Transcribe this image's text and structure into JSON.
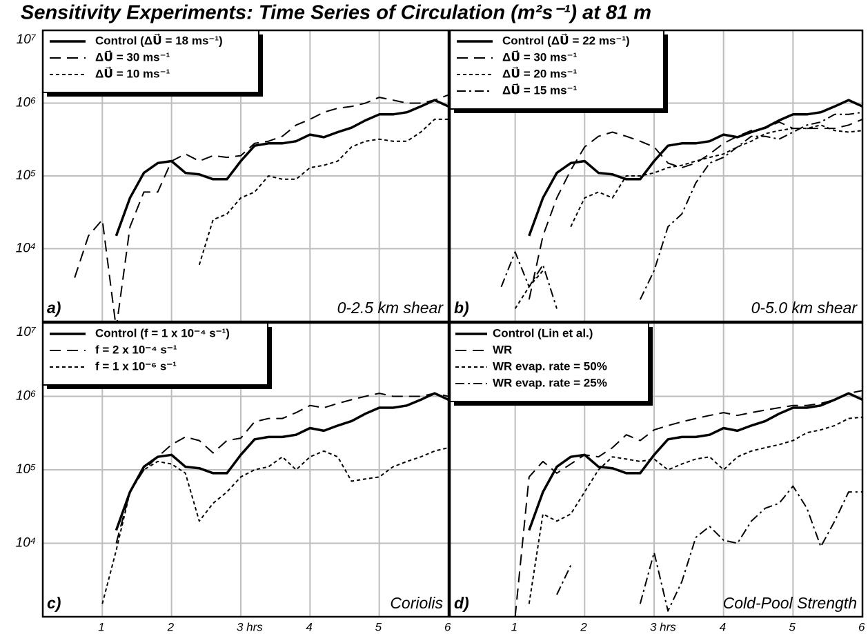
{
  "title": "Sensitivity Experiments:  Time Series of Circulation (m²s⁻¹) at 81 m",
  "chart_data": [
    {
      "type": "line",
      "title": "a)",
      "annotation": "0-2.5 km shear",
      "logy": true,
      "grid": true,
      "legend": "upper left",
      "x": [
        0.6,
        0.8,
        1.0,
        1.2,
        1.4,
        1.6,
        1.8,
        2.0,
        2.2,
        2.4,
        2.6,
        2.8,
        3.0,
        3.2,
        3.4,
        3.6,
        3.8,
        4.0,
        4.2,
        4.4,
        4.6,
        4.8,
        5.0,
        5.2,
        5.4,
        5.6,
        5.8,
        6.0
      ],
      "xlim": [
        0.14,
        6
      ],
      "xticks": [
        1,
        2,
        3,
        4,
        5
      ],
      "ylim": [
        1000,
        10000000
      ],
      "yticks": [
        {
          "value": 10000,
          "label": "10⁴"
        },
        {
          "value": 100000,
          "label": "10⁵"
        },
        {
          "value": 1000000,
          "label": "10⁶"
        },
        {
          "value": 10000000,
          "label": "10⁷"
        }
      ],
      "series": [
        {
          "name": "Control (ΔU⃗ = 18 ms⁻¹)",
          "color": "#000000",
          "linestyle": "solid",
          "values": [
            null,
            null,
            null,
            15000,
            50000,
            110000,
            150000,
            160000,
            110000,
            105000,
            90000,
            90000,
            160000,
            260000,
            280000,
            280000,
            300000,
            370000,
            340000,
            400000,
            460000,
            580000,
            700000,
            700000,
            750000,
            900000,
            1100000,
            900000
          ]
        },
        {
          "name": "ΔU⃗ = 30 ms⁻¹",
          "color": "#000000",
          "linestyle": "dashed",
          "values": [
            4000,
            15000,
            25000,
            800,
            20000,
            60000,
            60000,
            160000,
            200000,
            160000,
            190000,
            180000,
            190000,
            280000,
            300000,
            350000,
            500000,
            600000,
            750000,
            850000,
            900000,
            1000000,
            1200000,
            1100000,
            1000000,
            1000000,
            1100000,
            1300000
          ]
        },
        {
          "name": "ΔU⃗ = 10 ms⁻¹",
          "color": "#000000",
          "linestyle": "dotted",
          "values": [
            null,
            null,
            null,
            null,
            null,
            null,
            null,
            null,
            null,
            6000,
            25000,
            30000,
            50000,
            60000,
            100000,
            90000,
            90000,
            130000,
            140000,
            160000,
            250000,
            300000,
            320000,
            300000,
            300000,
            400000,
            600000,
            600000
          ]
        }
      ]
    },
    {
      "type": "line",
      "title": "b)",
      "annotation": "0-5.0 km shear",
      "logy": true,
      "grid": true,
      "legend": "upper left",
      "x": [
        0.6,
        0.8,
        1.0,
        1.2,
        1.4,
        1.6,
        1.8,
        2.0,
        2.2,
        2.4,
        2.6,
        2.8,
        3.0,
        3.2,
        3.4,
        3.6,
        3.8,
        4.0,
        4.2,
        4.4,
        4.6,
        4.8,
        5.0,
        5.2,
        5.4,
        5.6,
        5.8,
        6.0
      ],
      "xlim": [
        0.06,
        6
      ],
      "xticks": [
        1,
        2,
        3,
        4,
        5
      ],
      "ylim": [
        1000,
        10000000
      ],
      "yticks": [
        10000,
        100000,
        1000000
      ],
      "series": [
        {
          "name": "Control (ΔU⃗ = 22 ms⁻¹)",
          "color": "#000000",
          "linestyle": "solid",
          "values": [
            null,
            null,
            null,
            15000,
            50000,
            110000,
            150000,
            160000,
            110000,
            105000,
            90000,
            90000,
            160000,
            260000,
            280000,
            280000,
            300000,
            370000,
            340000,
            400000,
            460000,
            580000,
            700000,
            700000,
            750000,
            900000,
            1100000,
            900000
          ]
        },
        {
          "name": "ΔU⃗ = 30 ms⁻¹",
          "color": "#000000",
          "linestyle": "dashed",
          "values": [
            null,
            null,
            null,
            2000,
            15000,
            50000,
            120000,
            250000,
            350000,
            400000,
            350000,
            300000,
            250000,
            150000,
            130000,
            150000,
            200000,
            280000,
            350000,
            420000,
            450000,
            550000,
            450000,
            450000,
            450000,
            450000,
            500000,
            600000
          ]
        },
        {
          "name": "ΔU⃗ = 20 ms⁻¹",
          "color": "#000000",
          "linestyle": "dotted",
          "values": [
            null,
            null,
            1500,
            3000,
            5000,
            null,
            20000,
            50000,
            60000,
            50000,
            100000,
            100000,
            110000,
            130000,
            140000,
            160000,
            180000,
            200000,
            250000,
            300000,
            380000,
            420000,
            450000,
            450000,
            500000,
            420000,
            400000,
            420000
          ]
        },
        {
          "name": "ΔU⃗ = 15 ms⁻¹",
          "color": "#000000",
          "linestyle": "dashdot",
          "values": [
            null,
            3000,
            9000,
            3000,
            6000,
            1500,
            null,
            null,
            null,
            null,
            null,
            2000,
            5000,
            20000,
            30000,
            80000,
            150000,
            180000,
            250000,
            350000,
            350000,
            320000,
            400000,
            500000,
            550000,
            700000,
            700000,
            750000
          ]
        }
      ]
    },
    {
      "type": "line",
      "title": "c)",
      "annotation": "Coriolis",
      "logy": true,
      "grid": true,
      "legend": "upper left",
      "x": [
        0.6,
        0.8,
        1.0,
        1.2,
        1.4,
        1.6,
        1.8,
        2.0,
        2.2,
        2.4,
        2.6,
        2.8,
        3.0,
        3.2,
        3.4,
        3.6,
        3.8,
        4.0,
        4.2,
        4.4,
        4.6,
        4.8,
        5.0,
        5.2,
        5.4,
        5.6,
        5.8,
        6.0
      ],
      "xlim": [
        0.14,
        6
      ],
      "xticks": [
        1,
        2,
        {
          "value": 3,
          "label": "3  hrs"
        },
        4,
        5,
        6
      ],
      "ylim": [
        1000,
        10000000
      ],
      "yticks": [
        {
          "value": 10000,
          "label": "10⁴"
        },
        {
          "value": 100000,
          "label": "10⁵"
        },
        {
          "value": 1000000,
          "label": "10⁶"
        },
        {
          "value": 10000000,
          "label": "10⁷"
        }
      ],
      "series": [
        {
          "name": "Control (f = 1 x 10⁻⁴ s⁻¹)",
          "color": "#000000",
          "linestyle": "solid",
          "values": [
            null,
            null,
            null,
            15000,
            50000,
            110000,
            150000,
            160000,
            110000,
            105000,
            90000,
            90000,
            160000,
            260000,
            280000,
            280000,
            300000,
            370000,
            340000,
            400000,
            460000,
            580000,
            700000,
            700000,
            750000,
            900000,
            1100000,
            900000
          ]
        },
        {
          "name": "f = 2 x 10⁻⁴ s⁻¹",
          "color": "#000000",
          "linestyle": "dashed",
          "values": [
            null,
            null,
            null,
            10000,
            50000,
            100000,
            150000,
            220000,
            280000,
            250000,
            170000,
            250000,
            270000,
            450000,
            500000,
            500000,
            600000,
            750000,
            700000,
            800000,
            900000,
            1000000,
            1100000,
            1000000,
            1000000,
            1000000,
            1100000,
            1000000
          ]
        },
        {
          "name": "f = 1 x 10⁻⁶ s⁻¹",
          "color": "#000000",
          "linestyle": "dotted",
          "values": [
            null,
            null,
            1500,
            8000,
            50000,
            100000,
            130000,
            120000,
            90000,
            20000,
            35000,
            50000,
            80000,
            100000,
            110000,
            150000,
            100000,
            150000,
            180000,
            150000,
            70000,
            75000,
            80000,
            110000,
            130000,
            150000,
            180000,
            200000
          ]
        }
      ]
    },
    {
      "type": "line",
      "title": "d)",
      "annotation": "Cold-Pool Strength",
      "logy": true,
      "grid": true,
      "legend": "upper left",
      "x": [
        0.6,
        0.8,
        1.0,
        1.2,
        1.4,
        1.6,
        1.8,
        2.0,
        2.2,
        2.4,
        2.6,
        2.8,
        3.0,
        3.2,
        3.4,
        3.6,
        3.8,
        4.0,
        4.2,
        4.4,
        4.6,
        4.8,
        5.0,
        5.2,
        5.4,
        5.6,
        5.8,
        6.0
      ],
      "xlim": [
        0.06,
        6
      ],
      "xticks": [
        1,
        2,
        {
          "value": 3,
          "label": "3  hrs"
        },
        4,
        5,
        6
      ],
      "ylim": [
        1000,
        10000000
      ],
      "yticks": [
        10000,
        100000,
        1000000
      ],
      "series": [
        {
          "name": "Control (Lin et al.)",
          "color": "#000000",
          "linestyle": "solid",
          "values": [
            null,
            null,
            null,
            15000,
            50000,
            110000,
            150000,
            160000,
            110000,
            105000,
            90000,
            90000,
            160000,
            260000,
            280000,
            280000,
            300000,
            370000,
            340000,
            400000,
            460000,
            580000,
            700000,
            700000,
            750000,
            900000,
            1100000,
            900000
          ]
        },
        {
          "name": "WR",
          "color": "#000000",
          "linestyle": "dashed",
          "values": [
            null,
            null,
            1000,
            80000,
            130000,
            90000,
            120000,
            160000,
            150000,
            200000,
            300000,
            250000,
            350000,
            400000,
            450000,
            500000,
            550000,
            600000,
            550000,
            600000,
            650000,
            700000,
            750000,
            750000,
            800000,
            900000,
            1100000,
            1200000
          ]
        },
        {
          "name": "WR evap. rate = 50%",
          "color": "#000000",
          "linestyle": "dotted",
          "values": [
            null,
            null,
            null,
            1500,
            25000,
            20000,
            25000,
            50000,
            100000,
            150000,
            140000,
            130000,
            140000,
            100000,
            120000,
            140000,
            150000,
            100000,
            150000,
            180000,
            200000,
            220000,
            250000,
            320000,
            350000,
            400000,
            500000,
            520000
          ]
        },
        {
          "name": "WR evap. rate = 25%",
          "color": "#000000",
          "linestyle": "dashdot",
          "values": [
            null,
            null,
            null,
            null,
            null,
            2000,
            5000,
            null,
            null,
            null,
            null,
            1500,
            7500,
            1200,
            3000,
            12000,
            17000,
            11000,
            10000,
            20000,
            30000,
            35000,
            60000,
            30000,
            9000,
            20000,
            50000,
            50000
          ]
        }
      ]
    }
  ]
}
